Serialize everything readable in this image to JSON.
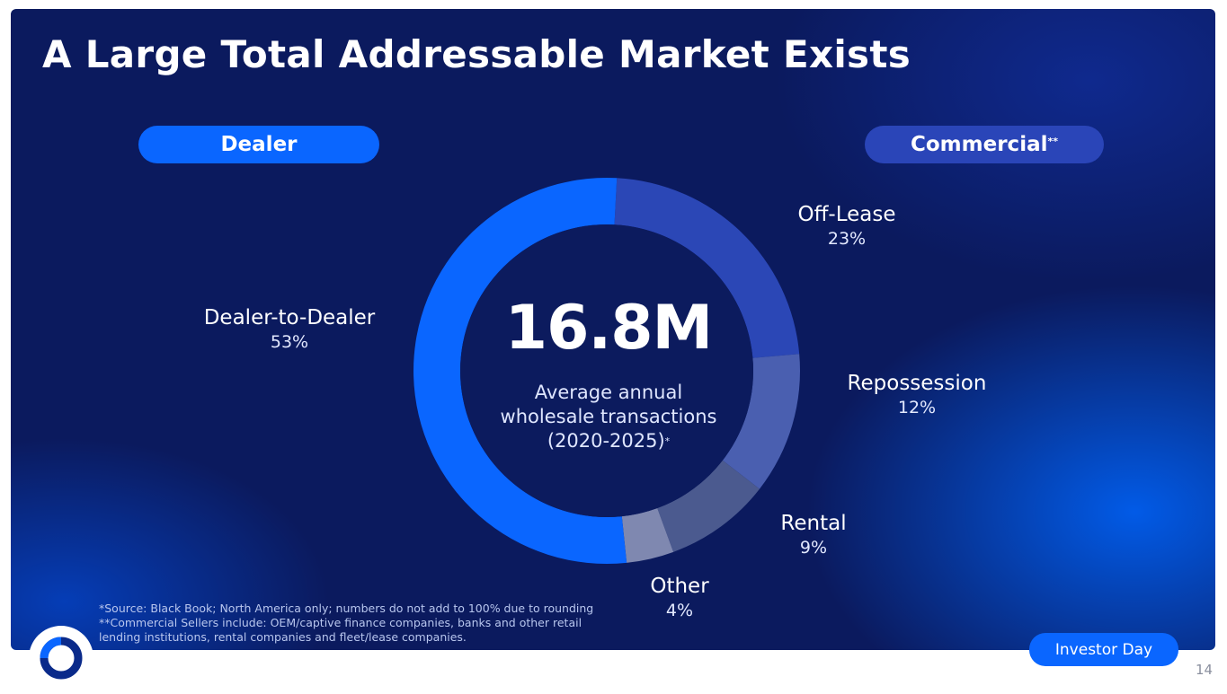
{
  "slide": {
    "title": "A Large Total Addressable Market Exists",
    "dealer_pill": "Dealer",
    "commercial_pill": "Commercial",
    "commercial_pill_mark": "**",
    "center_value": "16.8M",
    "center_label_line1": "Average annual",
    "center_label_line2": "wholesale transactions",
    "center_label_line3": "(2020-2025)",
    "center_label_mark": "*",
    "footnote_line1": "*Source: Black Book; North America only; numbers do not add to 100% due to rounding",
    "footnote_line2": "**Commercial Sellers include: OEM/captive finance companies, banks and other retail",
    "footnote_line3": "lending institutions, rental companies and fleet/lease companies.",
    "investor_day": "Investor Day",
    "page_number": "14"
  },
  "chart_data": {
    "type": "pie",
    "donut": true,
    "title": "",
    "categories": [
      "Off-Lease",
      "Repossession",
      "Rental",
      "Other",
      "Dealer-to-Dealer"
    ],
    "values": [
      23,
      12,
      9,
      4,
      53
    ],
    "value_labels": [
      "23%",
      "12%",
      "9%",
      "4%",
      "53%"
    ],
    "colors": [
      "#2b47b6",
      "#4a5fb0",
      "#4b5a8f",
      "#7f88b0",
      "#0a66ff"
    ],
    "start_angle_deg": 3
  }
}
